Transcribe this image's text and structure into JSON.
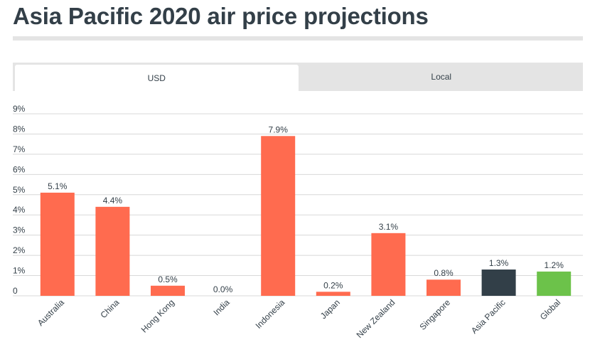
{
  "title": "Asia Pacific 2020 air price projections",
  "tabs": [
    {
      "label": "USD",
      "active": true
    },
    {
      "label": "Local",
      "active": false
    }
  ],
  "colors": {
    "bar_default": "#ff6b4f",
    "bar_region": "#323f48",
    "bar_global": "#6cc24a",
    "grid": "#d8d8d8",
    "text": "#333f48"
  },
  "chart_data": {
    "type": "bar",
    "title": "Asia Pacific 2020 air price projections",
    "xlabel": "",
    "ylabel": "",
    "ylim": [
      0,
      9
    ],
    "y_ticks": [
      "0",
      "1%",
      "2%",
      "3%",
      "4%",
      "5%",
      "6%",
      "7%",
      "8%",
      "9%"
    ],
    "categories": [
      "Australia",
      "China",
      "Hong Kong",
      "India",
      "Indonesia",
      "Japan",
      "New Zealand",
      "Singapore",
      "Asia Pacific",
      "Global"
    ],
    "values": [
      5.1,
      4.4,
      0.5,
      0.0,
      7.9,
      0.2,
      3.1,
      0.8,
      1.3,
      1.2
    ],
    "data_labels": [
      "5.1%",
      "4.4%",
      "0.5%",
      "0.0%",
      "7.9%",
      "0.2%",
      "3.1%",
      "0.8%",
      "1.3%",
      "1.2%"
    ],
    "bar_colors": [
      "#ff6b4f",
      "#ff6b4f",
      "#ff6b4f",
      "#ff6b4f",
      "#ff6b4f",
      "#ff6b4f",
      "#ff6b4f",
      "#ff6b4f",
      "#323f48",
      "#6cc24a"
    ],
    "grid": true
  }
}
